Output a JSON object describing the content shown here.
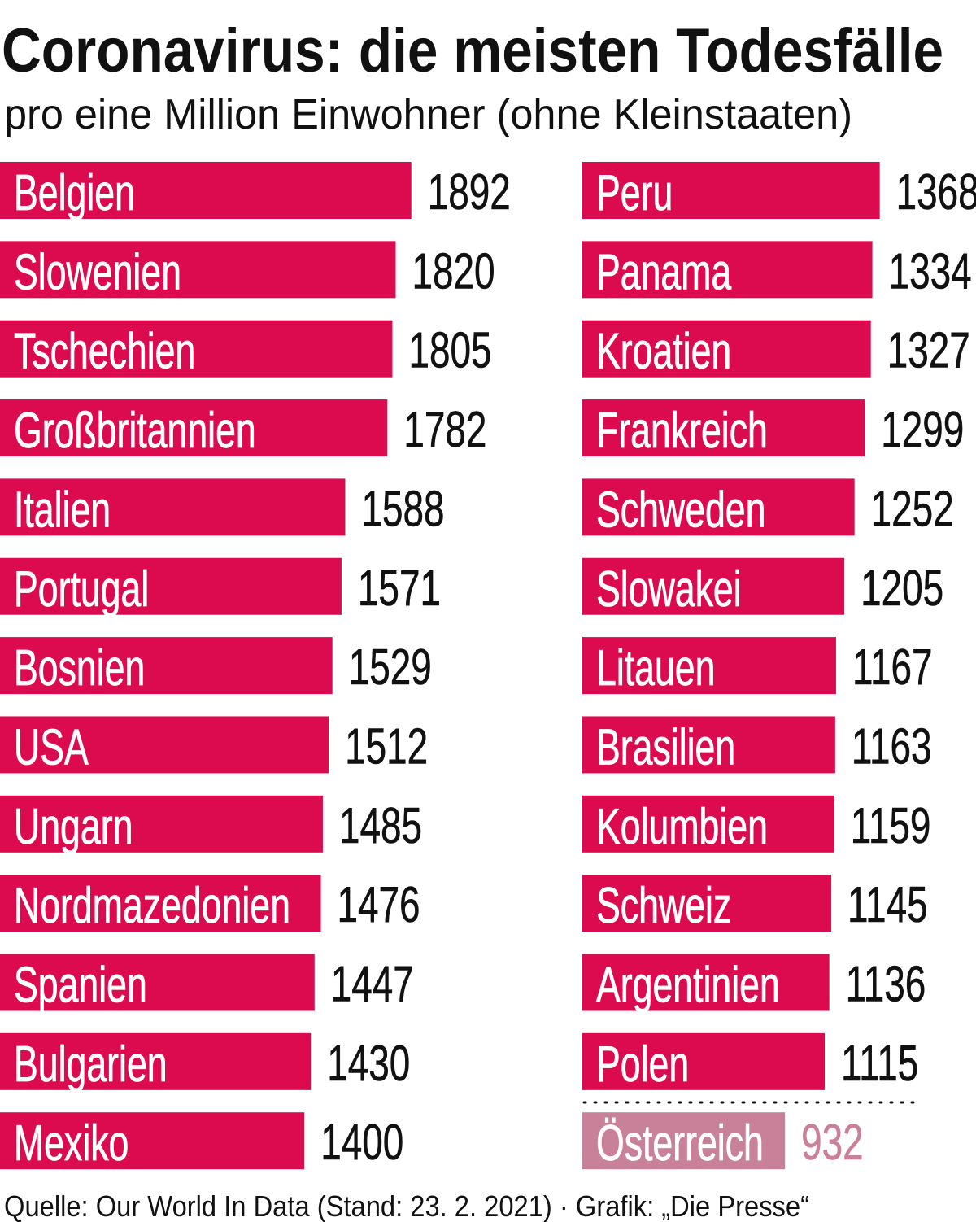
{
  "colors": {
    "bar": "#dc0a4e",
    "highlight": "#c98199",
    "text": "#111111",
    "label": "#ffffff"
  },
  "chart_data": {
    "type": "bar",
    "orientation": "horizontal",
    "title": "Coronavirus: die meisten Todesfälle",
    "subtitle": "pro eine Million Einwohner (ohne Kleinstaaten)",
    "footer": "Quelle: Our World In Data (Stand: 23. 2. 2021) · Grafik: „Die Presse“",
    "columns": [
      {
        "categories": [
          "Belgien",
          "Slowenien",
          "Tschechien",
          "Großbritannien",
          "Italien",
          "Portugal",
          "Bosnien",
          "USA",
          "Ungarn",
          "Nordmazedonien",
          "Spanien",
          "Bulgarien",
          "Mexiko"
        ],
        "values": [
          1892,
          1820,
          1805,
          1782,
          1588,
          1571,
          1529,
          1512,
          1485,
          1476,
          1447,
          1430,
          1400
        ]
      },
      {
        "categories": [
          "Peru",
          "Panama",
          "Kroatien",
          "Frankreich",
          "Schweden",
          "Slowakei",
          "Litauen",
          "Brasilien",
          "Kolumbien",
          "Schweiz",
          "Argentinien",
          "Polen"
        ],
        "values": [
          1368,
          1334,
          1327,
          1299,
          1252,
          1205,
          1167,
          1163,
          1159,
          1145,
          1136,
          1115
        ]
      }
    ],
    "highlight": {
      "category": "Österreich",
      "value": 932
    },
    "xlim": [
      0,
      1892
    ]
  }
}
